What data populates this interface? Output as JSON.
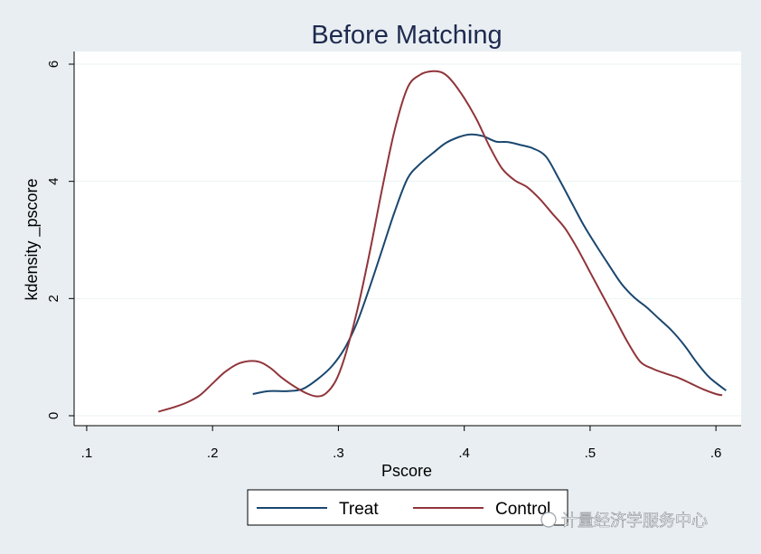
{
  "chart_data": {
    "type": "line",
    "title": "Before Matching",
    "xlabel": "Pscore",
    "ylabel": "kdensity _pscore",
    "xlim": [
      0.09,
      0.62
    ],
    "ylim": [
      0,
      6
    ],
    "x_ticks": [
      {
        "value": 0.1,
        "label": ".1"
      },
      {
        "value": 0.2,
        "label": ".2"
      },
      {
        "value": 0.3,
        "label": ".3"
      },
      {
        "value": 0.4,
        "label": ".4"
      },
      {
        "value": 0.5,
        "label": ".5"
      },
      {
        "value": 0.6,
        "label": ".6"
      }
    ],
    "y_ticks": [
      {
        "value": 0,
        "label": "0"
      },
      {
        "value": 2,
        "label": "2"
      },
      {
        "value": 4,
        "label": "4"
      },
      {
        "value": 6,
        "label": "6"
      }
    ],
    "grid": true,
    "legend_position": "bottom",
    "series": [
      {
        "name": "Treat",
        "color": "#1a476f",
        "x": [
          0.232,
          0.245,
          0.26,
          0.272,
          0.285,
          0.295,
          0.305,
          0.315,
          0.325,
          0.335,
          0.345,
          0.355,
          0.365,
          0.375,
          0.385,
          0.395,
          0.405,
          0.415,
          0.425,
          0.435,
          0.445,
          0.455,
          0.465,
          0.475,
          0.485,
          0.495,
          0.505,
          0.515,
          0.525,
          0.535,
          0.545,
          0.555,
          0.565,
          0.575,
          0.585,
          0.595,
          0.608
        ],
        "y": [
          0.37,
          0.42,
          0.42,
          0.46,
          0.65,
          0.85,
          1.15,
          1.6,
          2.2,
          2.85,
          3.5,
          4.05,
          4.3,
          4.48,
          4.65,
          4.75,
          4.8,
          4.77,
          4.68,
          4.67,
          4.62,
          4.56,
          4.42,
          4.05,
          3.65,
          3.25,
          2.9,
          2.57,
          2.25,
          2.02,
          1.85,
          1.65,
          1.45,
          1.2,
          0.9,
          0.65,
          0.43
        ]
      },
      {
        "name": "Control",
        "color": "#90353b",
        "x": [
          0.157,
          0.17,
          0.18,
          0.19,
          0.2,
          0.21,
          0.222,
          0.235,
          0.245,
          0.255,
          0.265,
          0.275,
          0.283,
          0.29,
          0.298,
          0.305,
          0.315,
          0.325,
          0.335,
          0.345,
          0.355,
          0.365,
          0.375,
          0.383,
          0.39,
          0.4,
          0.41,
          0.42,
          0.43,
          0.44,
          0.45,
          0.46,
          0.47,
          0.48,
          0.49,
          0.5,
          0.51,
          0.52,
          0.53,
          0.54,
          0.55,
          0.56,
          0.57,
          0.58,
          0.59,
          0.6,
          0.605
        ],
        "y": [
          0.07,
          0.15,
          0.23,
          0.35,
          0.55,
          0.75,
          0.9,
          0.93,
          0.83,
          0.65,
          0.5,
          0.38,
          0.33,
          0.38,
          0.6,
          1.0,
          1.8,
          2.8,
          3.9,
          4.9,
          5.6,
          5.82,
          5.88,
          5.85,
          5.72,
          5.42,
          5.05,
          4.6,
          4.22,
          4.02,
          3.9,
          3.7,
          3.45,
          3.2,
          2.85,
          2.45,
          2.05,
          1.65,
          1.25,
          0.92,
          0.8,
          0.72,
          0.65,
          0.55,
          0.45,
          0.37,
          0.35
        ]
      }
    ]
  },
  "watermark": "计量经济学服务中心",
  "colors": {
    "page_background": "#e9eef2",
    "plot_background": "#ffffff",
    "title_color": "#1e2a4f",
    "grid_color": "#eaf2f3"
  }
}
